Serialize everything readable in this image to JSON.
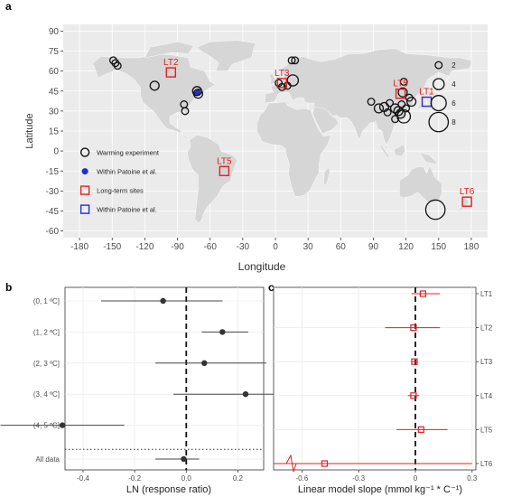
{
  "panels": {
    "a": "a",
    "b": "b",
    "c": "c"
  },
  "chart_data": [
    {
      "panel": "a",
      "type": "scatter",
      "xlabel": "Longitude",
      "ylabel": "Latitude",
      "xlim": [
        -195,
        195
      ],
      "ylim": [
        -65,
        95
      ],
      "xticks": [
        -180,
        -150,
        -120,
        -90,
        -60,
        -30,
        0,
        30,
        60,
        90,
        120,
        150,
        180
      ],
      "yticks": [
        -60,
        -45,
        -30,
        -15,
        0,
        15,
        30,
        45,
        60,
        75,
        90
      ],
      "background": "#ebebeb",
      "land_color": "#d6d6d6",
      "legend": [
        {
          "label": "Warming experiment",
          "marker": "circle",
          "color": "#111111"
        },
        {
          "label": "Within Patoine et al.",
          "marker": "filled-circle",
          "color": "#1f2fd1"
        },
        {
          "label": "Long-term sites",
          "marker": "square",
          "color": "#e02020"
        },
        {
          "label": "Within Patoine et al.",
          "marker": "square",
          "color": "#1f2fd1"
        }
      ],
      "size_legend": [
        "2",
        "4",
        "6",
        "8"
      ],
      "warming_sites": [
        {
          "x": -149,
          "y": 68,
          "size": 2
        },
        {
          "x": -147,
          "y": 66,
          "size": 2
        },
        {
          "x": -145,
          "y": 64,
          "size": 2
        },
        {
          "x": -111,
          "y": 49,
          "size": 3
        },
        {
          "x": -84,
          "y": 35,
          "size": 2
        },
        {
          "x": -83,
          "y": 30,
          "size": 2
        },
        {
          "x": -72,
          "y": 45,
          "size": 3
        },
        {
          "x": -71,
          "y": 43,
          "size": 3
        },
        {
          "x": 15,
          "y": 68,
          "size": 2
        },
        {
          "x": 18,
          "y": 68,
          "size": 2
        },
        {
          "x": 3,
          "y": 51,
          "size": 2
        },
        {
          "x": 11,
          "y": 49,
          "size": 2
        },
        {
          "x": 6,
          "y": 48,
          "size": 2
        },
        {
          "x": 16,
          "y": 53,
          "size": 4
        },
        {
          "x": 118,
          "y": 52,
          "size": 2
        },
        {
          "x": 117,
          "y": 44,
          "size": 3
        },
        {
          "x": 88,
          "y": 37,
          "size": 2
        },
        {
          "x": 95,
          "y": 32,
          "size": 3
        },
        {
          "x": 100,
          "y": 33,
          "size": 3
        },
        {
          "x": 105,
          "y": 36,
          "size": 2
        },
        {
          "x": 110,
          "y": 32,
          "size": 3
        },
        {
          "x": 113,
          "y": 30,
          "size": 3
        },
        {
          "x": 115,
          "y": 28,
          "size": 3
        },
        {
          "x": 118,
          "y": 26,
          "size": 5
        },
        {
          "x": 116,
          "y": 35,
          "size": 2
        },
        {
          "x": 120,
          "y": 32,
          "size": 2
        },
        {
          "x": 123,
          "y": 40,
          "size": 2
        },
        {
          "x": 110,
          "y": 24,
          "size": 2
        },
        {
          "x": 125,
          "y": 37,
          "size": 3
        },
        {
          "x": 103,
          "y": 29,
          "size": 2
        },
        {
          "x": 147,
          "y": -44,
          "size": 8
        }
      ],
      "patoine_sites": [
        {
          "x": -72,
          "y": 44
        }
      ],
      "long_term_sites": [
        {
          "label": "LT2",
          "x": -96,
          "y": 59,
          "patoine": false
        },
        {
          "label": "LT3",
          "x": 6,
          "y": 51,
          "patoine": false
        },
        {
          "label": "LT5",
          "x": 115,
          "y": 43,
          "patoine": false
        },
        {
          "label": "LT1",
          "x": 139,
          "y": 37,
          "patoine": true
        },
        {
          "label": "LT5",
          "x": -47,
          "y": -15,
          "patoine": false
        },
        {
          "label": "LT6",
          "x": 176,
          "y": -38,
          "patoine": false
        }
      ]
    },
    {
      "panel": "b",
      "type": "forest",
      "xlabel": "LN (response ratio)",
      "xlim": [
        -0.47,
        0.3
      ],
      "xticks": [
        -0.4,
        -0.2,
        0.0,
        0.2
      ],
      "xtick_labels": [
        "-0.4",
        "-0.2",
        "0.0",
        "0.2"
      ],
      "zero_line": 0,
      "background": "#ffffff",
      "categories": [
        "(0, 1 ºC]",
        "(1, 2 ºC]",
        "(2, 3 ºC]",
        "(3, 4 ºC]",
        "(4, 5 ºC]",
        "All data"
      ],
      "values": [
        -0.09,
        0.14,
        0.07,
        0.23,
        -0.48,
        -0.01
      ],
      "ci_low": [
        -0.33,
        0.06,
        -0.12,
        -0.05,
        -0.72,
        -0.12
      ],
      "ci_high": [
        0.14,
        0.24,
        0.31,
        0.53,
        -0.24,
        0.05
      ]
    },
    {
      "panel": "c",
      "type": "forest",
      "xlabel": "Linear model slope (mmol kg⁻¹ * C⁻¹)",
      "xlim": [
        -0.75,
        0.32
      ],
      "xticks": [
        -0.6,
        -0.3,
        0.0,
        0.3
      ],
      "xtick_labels": [
        "-0.6",
        "-0.3",
        "0",
        "0.3"
      ],
      "zero_line": 0,
      "background": "#ffffff",
      "color": "#e02020",
      "categories": [
        "LT1",
        "LT2",
        "LT3",
        "LT4",
        "LT5",
        "LT6"
      ],
      "values": [
        0.04,
        -0.01,
        -0.005,
        -0.01,
        0.03,
        -0.48
      ],
      "ci_low": [
        -0.02,
        -0.16,
        -0.02,
        -0.04,
        -0.1,
        -0.75
      ],
      "ci_high": [
        0.13,
        0.13,
        0.01,
        0.02,
        0.17,
        0.3
      ]
    }
  ]
}
